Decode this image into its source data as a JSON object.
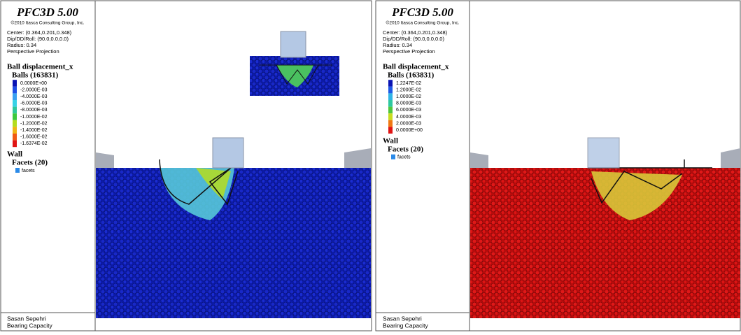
{
  "panels": [
    {
      "title": "PFC3D 5.00",
      "copyright": "©2010 Itasca Consulting Group, Inc.",
      "info": [
        "Center: (0.364,0.201,0.348)",
        "Dip/DD/Roll: (90.0,0.0,0.0)",
        "Radius: 0.34",
        "Perspective Projection"
      ],
      "plot_title": "Ball displacement_x",
      "group": "Balls (163831)",
      "legend": [
        {
          "label": "0.0000E+00",
          "color": "#0a14b4"
        },
        {
          "label": "-2.0000E-03",
          "color": "#1e4ee6"
        },
        {
          "label": "-4.0000E-03",
          "color": "#3aa0f0"
        },
        {
          "label": "-6.0000E-03",
          "color": "#38d2e6"
        },
        {
          "label": "-8.0000E-03",
          "color": "#2ec89a"
        },
        {
          "label": "-1.0000E-02",
          "color": "#3cc83c"
        },
        {
          "label": "-1.2000E-02",
          "color": "#b4dc1e"
        },
        {
          "label": "-1.4000E-02",
          "color": "#f0b414"
        },
        {
          "label": "-1.6000E-02",
          "color": "#f05a14"
        },
        {
          "label": "-1.6374E-02",
          "color": "#e01414"
        }
      ],
      "wall": "Wall",
      "facets_group": "Facets (20)",
      "facets": "facets",
      "author": "Sasan Sepehri",
      "project": "Bearing Capacity"
    },
    {
      "title": "PFC3D 5.00",
      "copyright": "©2010 Itasca Consulting Group, Inc.",
      "info": [
        "Center: (0.364,0.201,0.348)",
        "Dip/DD/Roll: (90.0,0.0,0.0)",
        "Radius: 0.34",
        "Perspective Projection"
      ],
      "plot_title": "Ball displacement_x",
      "group": "Balls (163831)",
      "legend": [
        {
          "label": "1.2247E-02",
          "color": "#0a14b4"
        },
        {
          "label": "1.2000E-02",
          "color": "#1e5ae6"
        },
        {
          "label": "1.0000E-02",
          "color": "#30b4e6"
        },
        {
          "label": "8.0000E-03",
          "color": "#2ec8a0"
        },
        {
          "label": "6.0000E-03",
          "color": "#50c83c"
        },
        {
          "label": "4.0000E-03",
          "color": "#c8dc1e"
        },
        {
          "label": "2.0000E-03",
          "color": "#f07814"
        },
        {
          "label": "0.0000E+00",
          "color": "#e01414"
        }
      ],
      "wall": "Wall",
      "facets_group": "Facets (20)",
      "facets": "facets",
      "author": "Sasan Sepehri",
      "project": "Bearing Capacity"
    }
  ]
}
